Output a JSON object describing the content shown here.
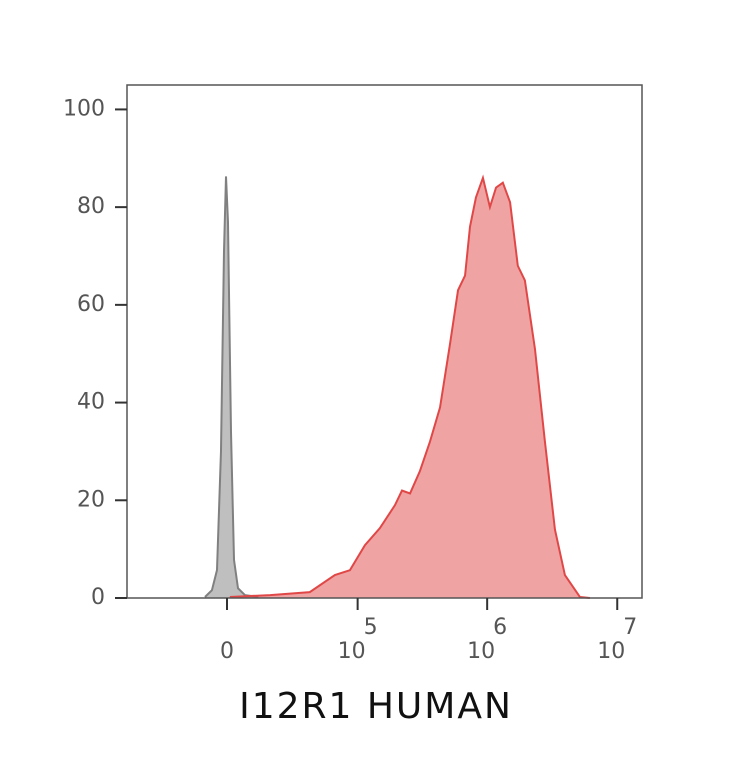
{
  "chart_data": {
    "type": "area",
    "xlabel": "I12R1 HUMAN",
    "xscale": "asinh",
    "xlim": [
      -57000,
      15500000
    ],
    "xticks": [
      0,
      {
        "value": 100000,
        "label": "10",
        "exponent": "5"
      },
      {
        "value": 1000000,
        "label": "10",
        "exponent": "6"
      },
      {
        "value": 10000000,
        "label": "10",
        "exponent": "7"
      }
    ],
    "ylim": [
      0,
      105
    ],
    "yticks": [
      0,
      20,
      40,
      60,
      80,
      100
    ],
    "series": [
      {
        "color": "#808080",
        "x": [
          -8000,
          -5400,
          -3560,
          -2130,
          -1060,
          -350,
          350,
          1420,
          2490,
          3920,
          6450,
          11700
        ],
        "values": [
          0.2,
          1.6,
          5.7,
          30,
          71,
          86.3,
          77,
          34,
          7.8,
          2,
          0.6,
          0.2
        ]
      },
      {
        "color": "#e04848",
        "x": [
          1000,
          16800,
          41000,
          66000,
          87000,
          114000,
          149000,
          195000,
          221000,
          255000,
          304000,
          363000,
          434000,
          518000,
          597000,
          676000,
          738000,
          820000,
          928000,
          1050000,
          1170000,
          1320000,
          1500000,
          1720000,
          1950000,
          2330000,
          2780000,
          3320000,
          3960000,
          5170000,
          6160000
        ],
        "values": [
          0.2,
          0.6,
          1.2,
          4.7,
          5.7,
          10.8,
          14.3,
          19,
          22,
          21.4,
          26,
          32,
          39,
          52,
          63,
          66,
          76,
          82,
          86,
          80,
          84,
          85,
          81,
          68,
          65,
          51,
          32,
          14,
          4.7,
          0.2,
          0
        ]
      }
    ]
  }
}
